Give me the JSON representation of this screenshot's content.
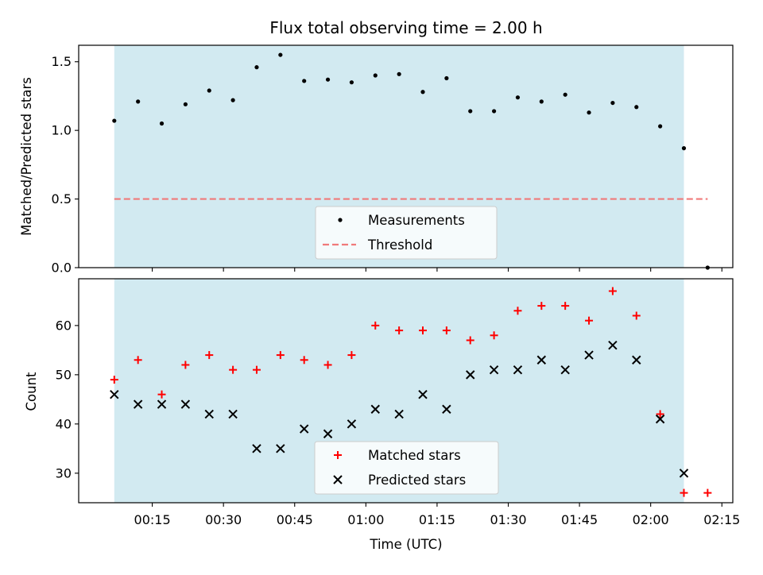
{
  "chart_data": [
    {
      "type": "scatter",
      "title": "Flux total observing time = 2.00 h",
      "xlabel": "",
      "ylabel": "Matched/Predicted stars",
      "ylim": [
        0,
        1.62
      ],
      "yticks": [
        0.0,
        0.5,
        1.0,
        1.5
      ],
      "ytick_labels": [
        "0.0",
        "0.5",
        "1.0",
        "1.5"
      ],
      "grid": false,
      "legend_position": "lower center",
      "shaded_span": [
        "00:07",
        "02:07"
      ],
      "threshold": {
        "name": "Threshold",
        "value": 0.5,
        "x_range": [
          "00:07",
          "02:12"
        ],
        "color": "#f07a7a"
      },
      "series": [
        {
          "name": "Measurements",
          "color": "#000000",
          "marker": "dot",
          "x": [
            "00:07",
            "00:12",
            "00:17",
            "00:22",
            "00:27",
            "00:32",
            "00:37",
            "00:42",
            "00:47",
            "00:52",
            "00:57",
            "01:02",
            "01:07",
            "01:12",
            "01:17",
            "01:22",
            "01:27",
            "01:32",
            "01:37",
            "01:42",
            "01:47",
            "01:52",
            "01:57",
            "02:02",
            "02:07",
            "02:12"
          ],
          "values": [
            1.07,
            1.21,
            1.05,
            1.19,
            1.29,
            1.22,
            1.46,
            1.55,
            1.36,
            1.37,
            1.35,
            1.4,
            1.41,
            1.28,
            1.38,
            1.14,
            1.14,
            1.24,
            1.21,
            1.26,
            1.13,
            1.2,
            1.17,
            1.03,
            0.87,
            0.0
          ]
        }
      ]
    },
    {
      "type": "scatter",
      "xlabel": "Time (UTC)",
      "ylabel": "Count",
      "ylim": [
        24,
        69.5
      ],
      "yticks": [
        30,
        40,
        50,
        60
      ],
      "ytick_labels": [
        "30",
        "40",
        "50",
        "60"
      ],
      "xticks": [
        "00:15",
        "00:30",
        "00:45",
        "01:00",
        "01:15",
        "01:30",
        "01:45",
        "02:00",
        "02:15"
      ],
      "grid": false,
      "legend_position": "lower center",
      "shaded_span": [
        "00:07",
        "02:07"
      ],
      "series": [
        {
          "name": "Matched stars",
          "color": "#ff0000",
          "marker": "plus",
          "x": [
            "00:07",
            "00:12",
            "00:17",
            "00:22",
            "00:27",
            "00:32",
            "00:37",
            "00:42",
            "00:47",
            "00:52",
            "00:57",
            "01:02",
            "01:07",
            "01:12",
            "01:17",
            "01:22",
            "01:27",
            "01:32",
            "01:37",
            "01:42",
            "01:47",
            "01:52",
            "01:57",
            "02:02",
            "02:07",
            "02:12"
          ],
          "values": [
            49,
            53,
            46,
            52,
            54,
            51,
            51,
            54,
            53,
            52,
            54,
            60,
            59,
            59,
            59,
            57,
            58,
            63,
            64,
            64,
            61,
            67,
            62,
            42,
            26,
            26
          ]
        },
        {
          "name": "Predicted stars",
          "color": "#000000",
          "marker": "x",
          "x": [
            "00:07",
            "00:12",
            "00:17",
            "00:22",
            "00:27",
            "00:32",
            "00:37",
            "00:42",
            "00:47",
            "00:52",
            "00:57",
            "01:02",
            "01:07",
            "01:12",
            "01:17",
            "01:22",
            "01:27",
            "01:32",
            "01:37",
            "01:42",
            "01:47",
            "01:52",
            "01:57",
            "02:02",
            "02:07"
          ],
          "values": [
            46,
            44,
            44,
            44,
            42,
            42,
            35,
            35,
            39,
            38,
            40,
            43,
            42,
            46,
            43,
            50,
            51,
            51,
            53,
            51,
            54,
            56,
            53,
            41,
            30
          ]
        }
      ]
    }
  ],
  "colors": {
    "shade": "#add8e6",
    "threshold": "#f07a7a",
    "matched": "#ff0000",
    "predicted": "#000000",
    "measurements": "#000000"
  }
}
